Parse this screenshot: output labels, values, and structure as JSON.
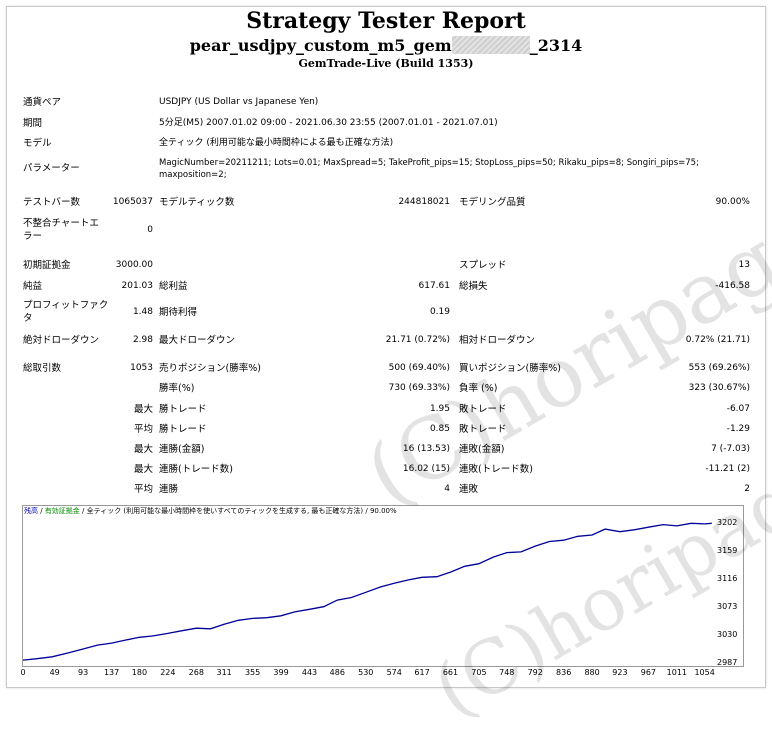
{
  "header": {
    "title": "Strategy Tester Report",
    "subtitle_prefix": "pear_usdjpy_custom_m5_gem",
    "subtitle_suffix": "_2314",
    "build": "GemTrade-Live (Build 1353)"
  },
  "info": {
    "symbol_label": "通貨ペア",
    "symbol_value": "USDJPY (US Dollar vs Japanese Yen)",
    "period_label": "期間",
    "period_value": "5分足(M5) 2007.01.02 09:00 - 2021.06.30 23:55 (2007.01.01 - 2021.07.01)",
    "model_label": "モデル",
    "model_value": "全ティック (利用可能な最小時間枠による最も正確な方法)",
    "params_label": "パラメーター",
    "params_line1": "MagicNumber=20211211; Lots=0.01; MaxSpread=5; TakeProfit_pips=15; StopLoss_pips=50; Rikaku_pips=8; Songiri_pips=75;",
    "params_line2": "maxposition=2;"
  },
  "stats": {
    "bars_label": "テストバー数",
    "bars_value": "1065037",
    "ticks_label": "モデルティック数",
    "ticks_value": "244818021",
    "quality_label": "モデリング品質",
    "quality_value": "90.00%",
    "mismatch_label_1": "不整合チャートエ",
    "mismatch_label_2": "ラー",
    "mismatch_value": "0",
    "deposit_label": "初期証拠金",
    "deposit_value": "3000.00",
    "spread_label": "スプレッド",
    "spread_value": "13",
    "net_label": "純益",
    "net_value": "201.03",
    "gross_profit_label": "総利益",
    "gross_profit_value": "617.61",
    "gross_loss_label": "総損失",
    "gross_loss_value": "-416.58",
    "pf_label_1": "プロフィットファク",
    "pf_label_2": "タ",
    "pf_value": "1.48",
    "expected_label": "期待利得",
    "expected_value": "0.19",
    "abs_dd_label": "絶対ドローダウン",
    "abs_dd_value": "2.98",
    "max_dd_label": "最大ドローダウン",
    "max_dd_value": "21.71 (0.72%)",
    "rel_dd_label": "相対ドローダウン",
    "rel_dd_value": "0.72% (21.71)",
    "trades_label": "総取引数",
    "trades_value": "1053",
    "short_label": "売りポジション(勝率%)",
    "short_value": "500 (69.40%)",
    "long_label": "買いポジション(勝率%)",
    "long_value": "553 (69.26%)",
    "winrate_label": "勝率(%)",
    "winrate_value": "730 (69.33%)",
    "lossrate_label": "負率 (%)",
    "lossrate_value": "323 (30.67%)",
    "max_word": "最大",
    "avg_word": "平均",
    "largest_win_label": "勝トレード",
    "largest_win_value": "1.95",
    "largest_loss_label": "敗トレード",
    "largest_loss_value": "-6.07",
    "avg_win_label": "勝トレード",
    "avg_win_value": "0.85",
    "avg_loss_label": "敗トレード",
    "avg_loss_value": "-1.29",
    "max_consec_win_label": "連勝(金額)",
    "max_consec_win_value": "16 (13.53)",
    "max_consec_loss_label": "連敗(金額)",
    "max_consec_loss_value": "7 (-7.03)",
    "max_consec_profit_label": "連勝(トレード数)",
    "max_consec_profit_value": "16.02 (15)",
    "max_consec_lossamt_label": "連敗(トレード数)",
    "max_consec_lossamt_value": "-11.21 (2)",
    "avg_consec_win_label": "連勝",
    "avg_consec_win_value": "4",
    "avg_consec_loss_label": "連敗",
    "avg_consec_loss_value": "2"
  },
  "watermark": "(C)horipage",
  "chart_legend": {
    "balance": "残高",
    "sep1": " / ",
    "equity": "有効証拠金",
    "sep2": " / ",
    "rest": "全ティック (利用可能な最小時間枠を使いすべてのティックを生成する, 最も正確な方法) / 90.00%"
  },
  "chart_data": {
    "type": "line",
    "x_ticks": [
      "0",
      "49",
      "93",
      "137",
      "180",
      "224",
      "268",
      "311",
      "355",
      "399",
      "443",
      "486",
      "530",
      "574",
      "617",
      "661",
      "705",
      "748",
      "792",
      "836",
      "880",
      "923",
      "967",
      "1011",
      "1054"
    ],
    "y_ticks": [
      "3202",
      "3159",
      "3116",
      "3073",
      "3030",
      "2987"
    ],
    "ylim": [
      2987,
      3208
    ],
    "xlim": [
      0,
      1070
    ],
    "series": [
      {
        "color": "#000099",
        "x": [
          0,
          20,
          45,
          70,
          93,
          115,
          137,
          160,
          180,
          200,
          224,
          245,
          268,
          290,
          311,
          333,
          355,
          377,
          399,
          420,
          443,
          465,
          486,
          508,
          530,
          552,
          574,
          596,
          617,
          640,
          661,
          683,
          705,
          727,
          748,
          770,
          792,
          814,
          836,
          858,
          880,
          900,
          923,
          945,
          967,
          990,
          1011,
          1033,
          1054,
          1065
        ],
        "y": [
          2993,
          2995,
          2998,
          3004,
          3010,
          3016,
          3019,
          3024,
          3028,
          3030,
          3034,
          3038,
          3042,
          3041,
          3048,
          3054,
          3057,
          3058,
          3061,
          3067,
          3071,
          3075,
          3085,
          3089,
          3097,
          3105,
          3111,
          3116,
          3120,
          3121,
          3128,
          3137,
          3141,
          3151,
          3158,
          3159,
          3168,
          3175,
          3177,
          3183,
          3185,
          3194,
          3190,
          3193,
          3197,
          3201,
          3199,
          3203,
          3202,
          3203
        ]
      }
    ]
  }
}
